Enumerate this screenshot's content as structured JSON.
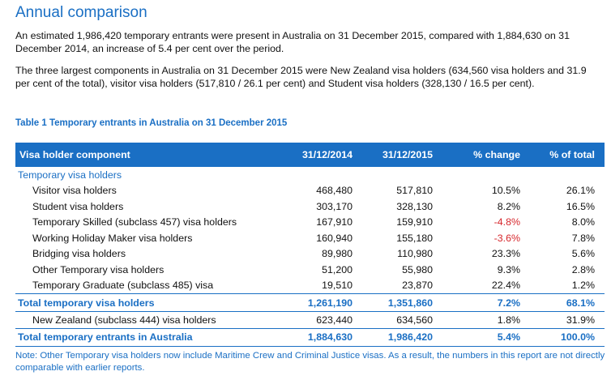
{
  "title": "Annual comparison",
  "paragraphs": [
    "An estimated 1,986,420 temporary entrants were present in Australia on 31 December 2015, compared with 1,884,630 on 31 December 2014, an increase of 5.4 per cent over the period.",
    "The three largest components in Australia on 31 December 2015 were New Zealand visa holders (634,560 visa holders and 31.9 per cent of the total), visitor visa holders (517,810 / 26.1 per cent) and Student visa holders (328,130 / 16.5 per cent)."
  ],
  "table": {
    "caption": "Table 1  Temporary entrants in Australia on 31 December 2015",
    "headers": [
      "Visa holder component",
      "31/12/2014",
      "31/12/2015",
      "% change",
      "% of total"
    ],
    "section_label": "Temporary visa holders",
    "items": [
      [
        "Visitor visa holders",
        "468,480",
        "517,810",
        "10.5%",
        "26.1%"
      ],
      [
        "Student visa holders",
        "303,170",
        "328,130",
        "8.2%",
        "16.5%"
      ],
      [
        "Temporary Skilled (subclass 457) visa holders",
        "167,910",
        "159,910",
        "-4.8%",
        "8.0%"
      ],
      [
        "Working Holiday Maker visa holders",
        "160,940",
        "155,180",
        "-3.6%",
        "7.8%"
      ],
      [
        "Bridging visa holders",
        "89,980",
        "110,980",
        "23.3%",
        "5.6%"
      ],
      [
        "Other Temporary visa holders",
        "51,200",
        "55,980",
        "9.3%",
        "2.8%"
      ],
      [
        "Temporary Graduate (subclass 485) visa",
        "19,510",
        "23,870",
        "22.4%",
        "1.2%"
      ]
    ],
    "subtotal": [
      "Total temporary visa holders",
      "1,261,190",
      "1,351,860",
      "7.2%",
      "68.1%"
    ],
    "nz_row": [
      "New Zealand (subclass 444) visa holders",
      "623,440",
      "634,560",
      "1.8%",
      "31.9%"
    ],
    "grand_total": [
      "Total temporary entrants in Australia",
      "1,884,630",
      "1,986,420",
      "5.4%",
      "100.0%"
    ],
    "negative_color": "#d6262b",
    "accent_color": "#1a6fc4"
  },
  "note": "Note: Other Temporary visa holders now include Maritime Crew and Criminal Justice visas. As a result, the numbers in this report are not directly comparable with earlier reports."
}
